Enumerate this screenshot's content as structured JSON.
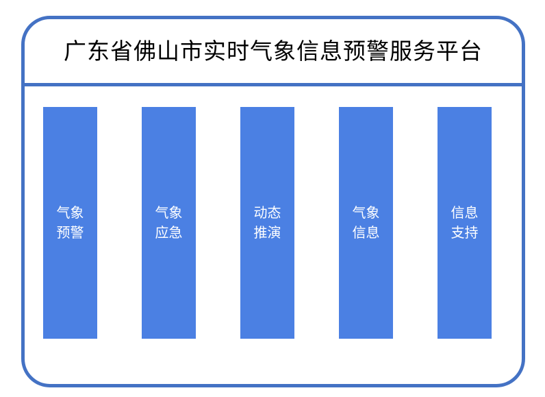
{
  "title": "广东省佛山市实时气象信息预警服务平台",
  "colors": {
    "border": "#4472C4",
    "module": "#4B80E3"
  },
  "modules": [
    {
      "line1": "气象",
      "line2": "预警"
    },
    {
      "line1": "气象",
      "line2": "应急"
    },
    {
      "line1": "动态",
      "line2": "推演"
    },
    {
      "line1": "气象",
      "line2": "信息"
    },
    {
      "line1": "信息",
      "line2": "支持"
    }
  ]
}
